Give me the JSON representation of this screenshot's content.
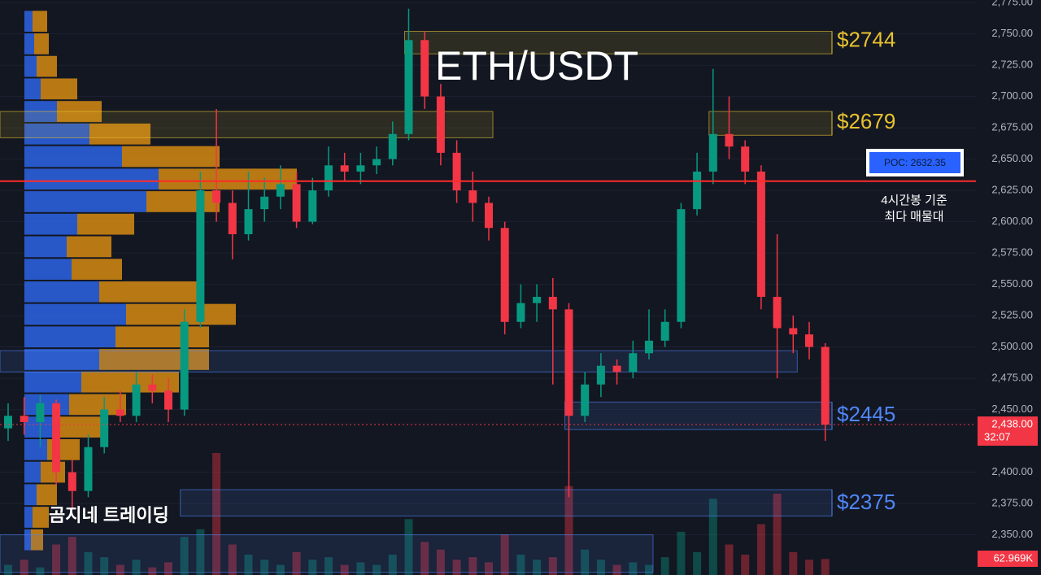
{
  "chart_data": {
    "type": "candlestick",
    "title": "ETH/USDT",
    "watermark": "곰지네 트레이딩",
    "ylim": [
      2317.9,
      2777
    ],
    "yticks": [
      {
        "value": 2775,
        "label": "2,775.00"
      },
      {
        "value": 2750,
        "label": "2,750.00"
      },
      {
        "value": 2725,
        "label": "2,725.00"
      },
      {
        "value": 2700,
        "label": "2,700.00"
      },
      {
        "value": 2675,
        "label": "2,675.00"
      },
      {
        "value": 2650,
        "label": "2,650.00"
      },
      {
        "value": 2625,
        "label": "2,625.00"
      },
      {
        "value": 2600,
        "label": "2,600.00"
      },
      {
        "value": 2575,
        "label": "2,575.00"
      },
      {
        "value": 2550,
        "label": "2,550.00"
      },
      {
        "value": 2525,
        "label": "2,525.00"
      },
      {
        "value": 2500,
        "label": "2,500.00"
      },
      {
        "value": 2475,
        "label": "2,475.00"
      },
      {
        "value": 2450,
        "label": "2,450.00"
      },
      {
        "value": 2400,
        "label": "2,400.00"
      },
      {
        "value": 2375,
        "label": "2,375.00"
      },
      {
        "value": 2350,
        "label": "2,350.00"
      }
    ],
    "candles": {
      "open": [
        2435,
        2445,
        2440,
        2455,
        2400,
        2385,
        2420,
        2450,
        2445,
        2470,
        2465,
        2450,
        2520,
        2625,
        2615,
        2590,
        2610,
        2620,
        2630,
        2600,
        2625,
        2645,
        2640,
        2645,
        2650,
        2670,
        2745,
        2700,
        2655,
        2625,
        2615,
        2595,
        2520,
        2535,
        2540,
        2530,
        2445,
        2470,
        2485,
        2480,
        2495,
        2505,
        2520,
        2610,
        2640,
        2670,
        2660,
        2640,
        2540,
        2515,
        2510,
        2500
      ],
      "high": [
        2455,
        2460,
        2462,
        2458,
        2410,
        2430,
        2460,
        2465,
        2480,
        2478,
        2475,
        2530,
        2640,
        2690,
        2625,
        2640,
        2635,
        2645,
        2640,
        2635,
        2660,
        2655,
        2655,
        2660,
        2680,
        2770,
        2752,
        2710,
        2665,
        2640,
        2620,
        2600,
        2550,
        2550,
        2555,
        2535,
        2480,
        2495,
        2490,
        2505,
        2530,
        2530,
        2615,
        2655,
        2722,
        2700,
        2665,
        2645,
        2590,
        2525,
        2520,
        2503
      ],
      "low": [
        2425,
        2430,
        2420,
        2390,
        2370,
        2380,
        2415,
        2440,
        2440,
        2455,
        2440,
        2445,
        2515,
        2600,
        2570,
        2585,
        2600,
        2610,
        2595,
        2598,
        2620,
        2632,
        2630,
        2638,
        2645,
        2665,
        2690,
        2645,
        2615,
        2600,
        2585,
        2510,
        2515,
        2520,
        2470,
        2380,
        2440,
        2460,
        2470,
        2475,
        2490,
        2500,
        2515,
        2605,
        2630,
        2650,
        2630,
        2530,
        2475,
        2495,
        2490,
        2425
      ],
      "close": [
        2445,
        2440,
        2455,
        2400,
        2385,
        2420,
        2450,
        2445,
        2470,
        2465,
        2450,
        2520,
        2625,
        2615,
        2590,
        2610,
        2620,
        2630,
        2600,
        2625,
        2645,
        2640,
        2645,
        2650,
        2670,
        2745,
        2700,
        2655,
        2625,
        2615,
        2595,
        2520,
        2535,
        2540,
        2530,
        2445,
        2470,
        2485,
        2480,
        2495,
        2505,
        2520,
        2610,
        2640,
        2670,
        2660,
        2640,
        2540,
        2515,
        2510,
        2500,
        2438
      ]
    },
    "volume": [
      40,
      60,
      30,
      120,
      150,
      90,
      70,
      40,
      60,
      30,
      50,
      150,
      180,
      480,
      120,
      80,
      60,
      40,
      90,
      60,
      70,
      40,
      50,
      40,
      80,
      220,
      130,
      100,
      60,
      70,
      50,
      160,
      80,
      60,
      70,
      350,
      100,
      60,
      40,
      50,
      40,
      70,
      170,
      90,
      300,
      120,
      80,
      200,
      320,
      90,
      60,
      62.969
    ],
    "current_price": {
      "value": 2438,
      "label": "2,438.00"
    },
    "countdown": "32:07",
    "current_volume": {
      "value": 62.969,
      "label": "62.969K"
    },
    "poc": {
      "value": 2632.35,
      "label": "POC: 2632.35"
    },
    "poc_note": [
      "4시간봉 기준",
      "최다 매물대"
    ],
    "volume_profile": {
      "prices": [
        2760,
        2742,
        2724,
        2706,
        2688,
        2670,
        2652,
        2634,
        2616,
        2598,
        2580,
        2562,
        2544,
        2526,
        2508,
        2490,
        2472,
        2454,
        2436,
        2418,
        2400,
        2382,
        2364,
        2346
      ],
      "buy": [
        10,
        12,
        15,
        20,
        40,
        80,
        120,
        165,
        150,
        65,
        52,
        58,
        92,
        125,
        112,
        92,
        70,
        55,
        40,
        28,
        20,
        15,
        10,
        8
      ],
      "sell": [
        18,
        18,
        25,
        45,
        55,
        75,
        120,
        170,
        90,
        70,
        55,
        62,
        125,
        135,
        115,
        135,
        120,
        70,
        55,
        40,
        30,
        25,
        20,
        15
      ]
    },
    "zones": [
      {
        "label": "$2744",
        "value": 2744,
        "low": 2734,
        "high": 2752,
        "start": 25,
        "end": 51,
        "color": "#e8c22e"
      },
      {
        "label": "$2679",
        "value": 2679,
        "low": 2669,
        "high": 2688,
        "start": 44,
        "end": 51,
        "color": "#e8c22e"
      },
      {
        "label": "$2445",
        "value": 2445,
        "low": 2434,
        "high": 2456,
        "start": 35,
        "end": 51,
        "color": "#4f86f7"
      },
      {
        "label": "$2375",
        "value": 2375,
        "low": 2365,
        "high": 2386,
        "start": 11,
        "end": 51,
        "color": "#4f86f7"
      },
      {
        "low": 2667,
        "high": 2688,
        "start": 0,
        "end": 30,
        "color": "#e8c22e"
      },
      {
        "low": 2480,
        "high": 2497,
        "start": 0,
        "end": 49,
        "color": "#4f86f7"
      },
      {
        "low": 2320,
        "high": 2350,
        "start": 0,
        "end": 40,
        "color": "#4f86f7"
      }
    ],
    "up_color": "#089981",
    "down_color": "#f23645",
    "profile_colors": [
      "#2b5fd9",
      "#d68a12"
    ]
  }
}
